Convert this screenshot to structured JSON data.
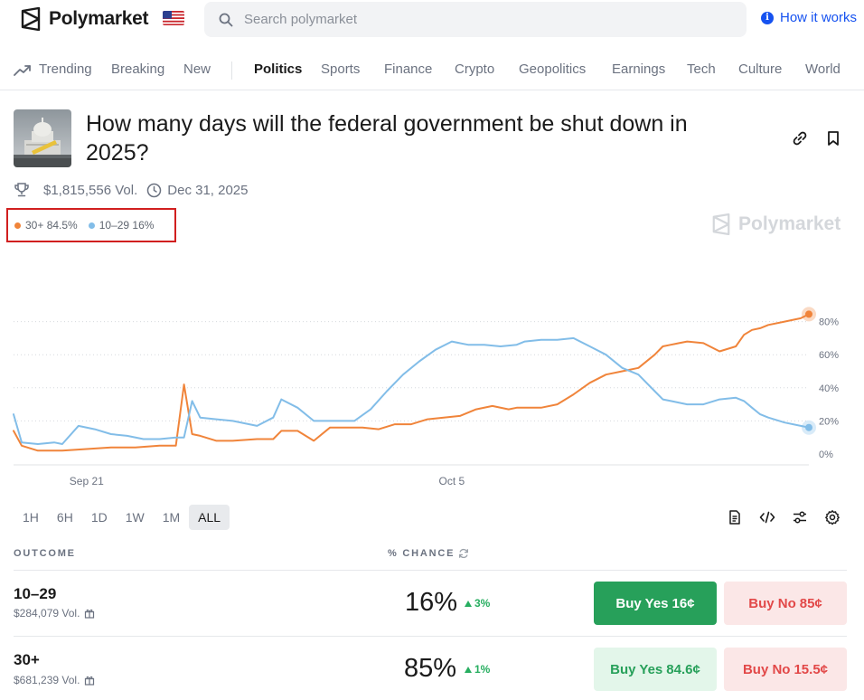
{
  "header": {
    "brand": "Polymarket",
    "search_placeholder": "Search polymarket",
    "how_it_works": "How it works"
  },
  "nav": {
    "items": [
      {
        "label": "Trending",
        "active": false
      },
      {
        "label": "Breaking",
        "active": false
      },
      {
        "label": "New",
        "active": false
      },
      {
        "label": "Politics",
        "active": true
      },
      {
        "label": "Sports",
        "active": false
      },
      {
        "label": "Finance",
        "active": false
      },
      {
        "label": "Crypto",
        "active": false
      },
      {
        "label": "Geopolitics",
        "active": false
      },
      {
        "label": "Earnings",
        "active": false
      },
      {
        "label": "Tech",
        "active": false
      },
      {
        "label": "Culture",
        "active": false
      },
      {
        "label": "World",
        "active": false
      }
    ]
  },
  "market": {
    "title": "How many days will the federal government be shut down in 2025?",
    "volume": "$1,815,556 Vol.",
    "end_date": "Dec 31, 2025",
    "watermark": "Polymarket"
  },
  "legend": [
    {
      "label": "30+ 84.5%",
      "color": "#f0843a"
    },
    {
      "label": "10–29 16%",
      "color": "#82bde8"
    }
  ],
  "chart_data": {
    "type": "line",
    "ylim": [
      0,
      100
    ],
    "y_ticks": [
      "0%",
      "20%",
      "40%",
      "60%",
      "80%"
    ],
    "x_ticks": [
      {
        "label": "Sep 21",
        "x": 9
      },
      {
        "label": "Oct 5",
        "x": 54
      }
    ],
    "grid": true,
    "series": [
      {
        "name": "30+",
        "color": "#f0843a",
        "x": [
          0,
          1,
          3,
          6,
          9,
          12,
          15,
          18,
          20,
          21,
          22,
          23,
          25,
          27,
          30,
          32,
          33,
          35,
          37,
          39,
          41,
          43,
          45,
          47,
          49,
          51,
          53,
          55,
          57,
          59,
          61,
          62,
          63,
          65,
          67,
          69,
          71,
          73,
          75,
          77,
          79,
          80,
          81,
          82,
          83,
          85,
          87,
          89,
          90,
          91,
          92,
          93,
          95,
          97,
          98
        ],
        "values": [
          14,
          5,
          2,
          2,
          3,
          4,
          4,
          5,
          5,
          42,
          12,
          11,
          8,
          8,
          9,
          9,
          14,
          14,
          8,
          16,
          16,
          16,
          15,
          18,
          18,
          21,
          22,
          23,
          27,
          29,
          27,
          28,
          28,
          28,
          30,
          36,
          43,
          48,
          50,
          52,
          60,
          65,
          66,
          67,
          68,
          67,
          62,
          65,
          72,
          75,
          76,
          78,
          80,
          82,
          84.5
        ]
      },
      {
        "name": "10–29",
        "color": "#82bde8",
        "x": [
          0,
          1,
          3,
          5,
          6,
          8,
          10,
          12,
          14,
          16,
          18,
          20,
          21,
          22,
          23,
          25,
          27,
          30,
          32,
          33,
          35,
          37,
          39,
          41,
          42,
          44,
          46,
          48,
          50,
          52,
          54,
          56,
          58,
          60,
          62,
          63,
          65,
          67,
          69,
          71,
          73,
          75,
          77,
          79,
          80,
          81,
          83,
          85,
          87,
          89,
          90,
          91,
          92,
          93,
          95,
          97,
          98
        ],
        "values": [
          24,
          7,
          6,
          7,
          6,
          17,
          15,
          12,
          11,
          9,
          9,
          10,
          10,
          32,
          22,
          21,
          20,
          17,
          22,
          33,
          28,
          20,
          20,
          20,
          20,
          27,
          38,
          48,
          56,
          63,
          68,
          66,
          66,
          65,
          66,
          68,
          69,
          69,
          70,
          65,
          60,
          52,
          48,
          38,
          33,
          32,
          30,
          30,
          33,
          34,
          32,
          28,
          24,
          22,
          19,
          17,
          16
        ]
      }
    ]
  },
  "ranges": [
    {
      "label": "1H",
      "active": false
    },
    {
      "label": "6H",
      "active": false
    },
    {
      "label": "1D",
      "active": false
    },
    {
      "label": "1W",
      "active": false
    },
    {
      "label": "1M",
      "active": false
    },
    {
      "label": "ALL",
      "active": true
    }
  ],
  "table": {
    "col_outcome": "OUTCOME",
    "col_chance": "% CHANCE",
    "rows": [
      {
        "name": "10–29",
        "volume": "$284,079 Vol.",
        "chance": "16%",
        "change": "3%",
        "buy_yes_label": "Buy Yes",
        "buy_yes_price": "16¢",
        "buy_no_label": "Buy No",
        "buy_no_price": "85¢"
      },
      {
        "name": "30+",
        "volume": "$681,239 Vol.",
        "chance": "85%",
        "change": "1%",
        "buy_yes_label": "Buy Yes",
        "buy_yes_price": "84.6¢",
        "buy_no_label": "Buy No",
        "buy_no_price": "15.5¢"
      }
    ]
  }
}
